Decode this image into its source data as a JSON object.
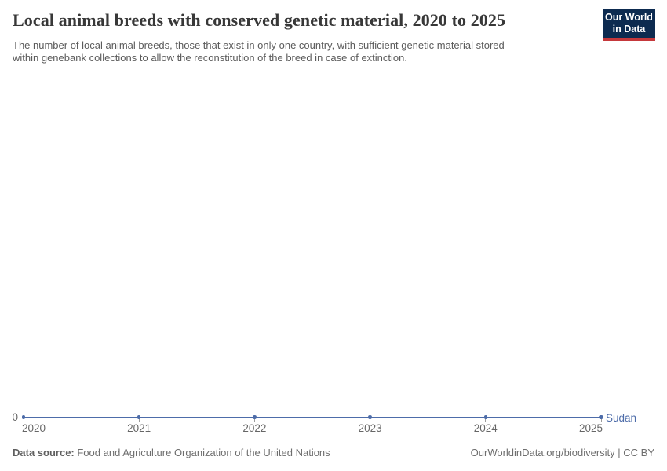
{
  "header": {
    "title": "Local animal breeds with conserved genetic material, 2020 to 2025",
    "subtitle_lines": [
      "The number of local animal breeds, those that exist in only one country, with sufficient genetic material stored",
      "within genebank collections to allow the reconstitution of the breed in case of extinction."
    ],
    "logo": {
      "line1": "Our World",
      "line2": "in Data",
      "bg_color": "#0d2b50",
      "bar_color": "#c5383b"
    }
  },
  "chart_data": {
    "type": "line",
    "title": "Local animal breeds with conserved genetic material, 2020 to 2025",
    "x": [
      2020,
      2021,
      2022,
      2023,
      2024,
      2025
    ],
    "x_tick_labels": [
      "2020",
      "2021",
      "2022",
      "2023",
      "2024",
      "2025"
    ],
    "y_tick_labels": [
      "0"
    ],
    "ylim": [
      0,
      0
    ],
    "grid": false,
    "legend_position": "end-of-line",
    "series": [
      {
        "name": "Sudan",
        "values": [
          0,
          0,
          0,
          0,
          0,
          0
        ],
        "color": "#4d6ca9"
      }
    ],
    "xlabel": "",
    "ylabel": ""
  },
  "footer": {
    "source_label": "Data source:",
    "source_text": " Food and Agriculture Organization of the United Nations",
    "right_text": "OurWorldinData.org/biodiversity | CC BY"
  }
}
